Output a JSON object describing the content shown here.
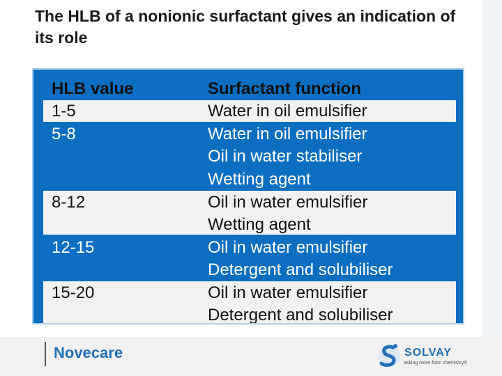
{
  "slide": {
    "title": "The HLB of a nonionic surfactant gives an indication of its role"
  },
  "table": {
    "headers": {
      "hlb": "HLB value",
      "function": "Surfactant function"
    },
    "rows": [
      {
        "hlb": "1-5",
        "function": "Water in oil emulsifier"
      },
      {
        "hlb": "5-8",
        "function": "Water in oil emulsifier"
      },
      {
        "hlb": "",
        "function": "Oil in water stabiliser"
      },
      {
        "hlb": "",
        "function": "Wetting agent"
      },
      {
        "hlb": "8-12",
        "function": "Oil in water emulsifier"
      },
      {
        "hlb": "",
        "function": "Wetting agent"
      },
      {
        "hlb": "12-15",
        "function": "Oil in water emulsifier"
      },
      {
        "hlb": "",
        "function": "Detergent and solubiliser"
      },
      {
        "hlb": "15-20",
        "function": "Oil in water emulsifier"
      },
      {
        "hlb": "",
        "function": "Detergent and solubiliser"
      }
    ]
  },
  "footer": {
    "brand": "Novecare",
    "logo_name": "SOLVAY",
    "logo_tagline": "asking more from chemistry®",
    "logo_icon": "solvay-s-icon"
  },
  "colors": {
    "table_blue": "#0b6ec1",
    "band_grey": "#f1f1f1",
    "brand_blue": "#1f6fb8"
  }
}
